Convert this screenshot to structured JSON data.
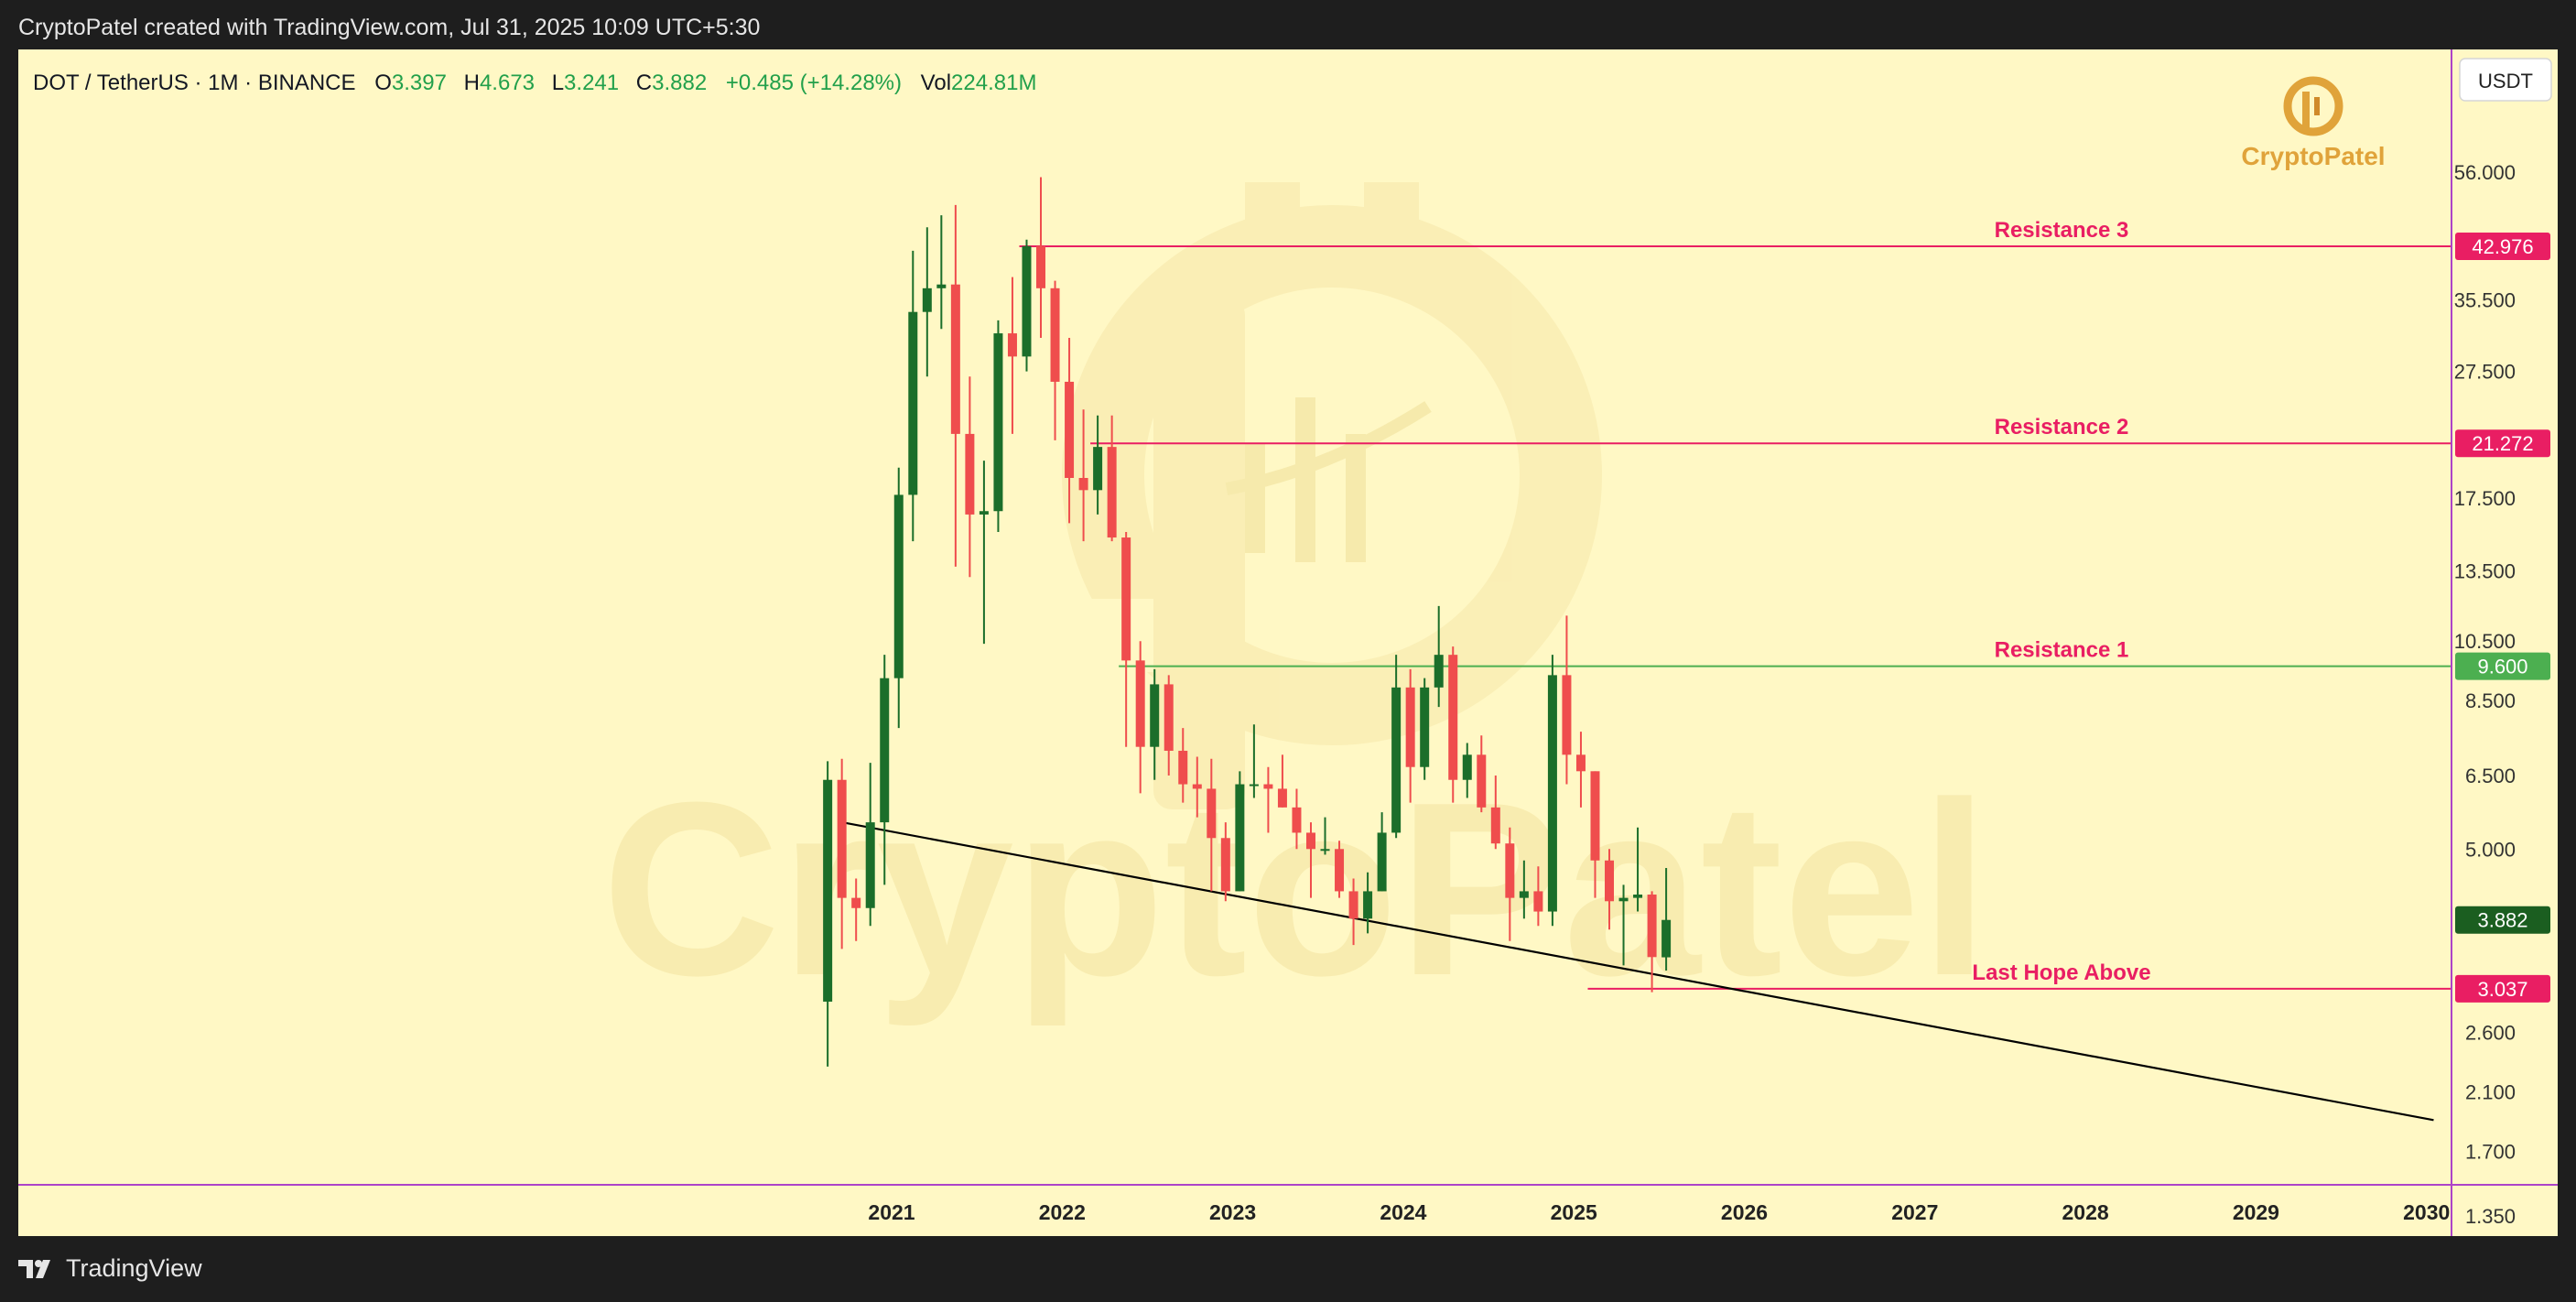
{
  "header": {
    "attribution": "CryptoPatel created with TradingView.com, Jul 31, 2025 10:09 UTC+5:30"
  },
  "legend": {
    "symbol": "DOT / TetherUS · 1M · BINANCE",
    "open_label": "O",
    "open": "3.397",
    "high_label": "H",
    "high": "4.673",
    "low_label": "L",
    "low": "3.241",
    "close_label": "C",
    "close": "3.882",
    "change": "+0.485 (+14.28%)",
    "vol_label": "Vol",
    "vol": "224.81M"
  },
  "currency": "USDT",
  "watermark": {
    "brand": "CryptoPatel"
  },
  "footer": {
    "brand": "TradingView"
  },
  "colors": {
    "up": "#1b6e2a",
    "down": "#ef4d4d",
    "resistance": "#e91e63",
    "support_green": "#4caf50",
    "background": "#fff8c5"
  },
  "chart_data": {
    "type": "candlestick",
    "title": "",
    "yscale": "log",
    "ylim": [
      1.13,
      72
    ],
    "x_ticks": [
      "2021",
      "2022",
      "2023",
      "2024",
      "2025",
      "2026",
      "2027",
      "2028",
      "2029",
      "2030"
    ],
    "y_ticks": [
      "56.000",
      "35.500",
      "27.500",
      "17.500",
      "13.500",
      "10.500",
      "8.500",
      "6.500",
      "5.000",
      "2.600",
      "2.100",
      "1.700",
      "1.350"
    ],
    "y_tick_values": [
      56,
      35.5,
      27.5,
      17.5,
      13.5,
      10.5,
      8.5,
      6.5,
      5.0,
      2.6,
      2.1,
      1.7,
      1.35
    ],
    "levels": [
      {
        "name": "Resistance 3",
        "value": 42.976,
        "tag": "42.976",
        "color": "#e91e63",
        "start": "2021-10"
      },
      {
        "name": "Resistance 2",
        "value": 21.272,
        "tag": "21.272",
        "color": "#e91e63",
        "start": "2022-03"
      },
      {
        "name": "Resistance 1",
        "value": 9.6,
        "tag": "9.600",
        "color": "#4caf50",
        "start": "2022-05"
      },
      {
        "name": "Last Hope Above",
        "value": 3.037,
        "tag": "3.037",
        "color": "#e91e63",
        "start": "2025-02"
      }
    ],
    "price_tag": {
      "value": 3.882,
      "tag": "3.882"
    },
    "trendline": {
      "start": {
        "date": "2020-09",
        "price": 5.5
      },
      "end": {
        "date": "2030-01",
        "price": 1.9
      }
    },
    "candles": [
      {
        "t": "2020-08",
        "o": 2.9,
        "h": 6.84,
        "l": 2.3,
        "c": 6.4
      },
      {
        "t": "2020-09",
        "o": 6.4,
        "h": 6.9,
        "l": 3.5,
        "c": 4.2
      },
      {
        "t": "2020-10",
        "o": 4.2,
        "h": 4.5,
        "l": 3.6,
        "c": 4.05
      },
      {
        "t": "2020-11",
        "o": 4.05,
        "h": 6.8,
        "l": 3.8,
        "c": 5.5
      },
      {
        "t": "2020-12",
        "o": 5.5,
        "h": 10.0,
        "l": 4.4,
        "c": 9.2
      },
      {
        "t": "2021-01",
        "o": 9.2,
        "h": 19.5,
        "l": 7.7,
        "c": 17.7
      },
      {
        "t": "2021-02",
        "o": 17.7,
        "h": 42.3,
        "l": 15.0,
        "c": 34.0
      },
      {
        "t": "2021-03",
        "o": 34.0,
        "h": 46.0,
        "l": 27.0,
        "c": 37.0
      },
      {
        "t": "2021-04",
        "o": 37.0,
        "h": 48.0,
        "l": 32.0,
        "c": 37.5
      },
      {
        "t": "2021-05",
        "o": 37.5,
        "h": 49.8,
        "l": 13.7,
        "c": 22.0
      },
      {
        "t": "2021-06",
        "o": 22.0,
        "h": 27.0,
        "l": 13.2,
        "c": 16.5
      },
      {
        "t": "2021-07",
        "o": 16.5,
        "h": 20.0,
        "l": 10.4,
        "c": 16.7
      },
      {
        "t": "2021-08",
        "o": 16.7,
        "h": 33.0,
        "l": 15.5,
        "c": 31.5
      },
      {
        "t": "2021-09",
        "o": 31.5,
        "h": 38.5,
        "l": 22.0,
        "c": 29.0
      },
      {
        "t": "2021-10",
        "o": 29.0,
        "h": 44.0,
        "l": 27.5,
        "c": 43.0
      },
      {
        "t": "2021-11",
        "o": 43.0,
        "h": 55.0,
        "l": 31.0,
        "c": 37.0
      },
      {
        "t": "2021-12",
        "o": 37.0,
        "h": 38.0,
        "l": 21.5,
        "c": 26.5
      },
      {
        "t": "2022-01",
        "o": 26.5,
        "h": 31.0,
        "l": 16.0,
        "c": 18.8
      },
      {
        "t": "2022-02",
        "o": 18.8,
        "h": 24.0,
        "l": 15.0,
        "c": 18.0
      },
      {
        "t": "2022-03",
        "o": 18.0,
        "h": 23.5,
        "l": 16.5,
        "c": 21.0
      },
      {
        "t": "2022-04",
        "o": 21.0,
        "h": 23.5,
        "l": 15.0,
        "c": 15.2
      },
      {
        "t": "2022-05",
        "o": 15.2,
        "h": 15.5,
        "l": 7.2,
        "c": 9.8
      },
      {
        "t": "2022-06",
        "o": 9.8,
        "h": 10.5,
        "l": 6.1,
        "c": 7.2
      },
      {
        "t": "2022-07",
        "o": 7.2,
        "h": 9.5,
        "l": 6.4,
        "c": 9.0
      },
      {
        "t": "2022-08",
        "o": 9.0,
        "h": 9.3,
        "l": 6.5,
        "c": 7.1
      },
      {
        "t": "2022-09",
        "o": 7.1,
        "h": 7.7,
        "l": 5.9,
        "c": 6.3
      },
      {
        "t": "2022-10",
        "o": 6.3,
        "h": 6.95,
        "l": 5.6,
        "c": 6.2
      },
      {
        "t": "2022-11",
        "o": 6.2,
        "h": 6.9,
        "l": 4.3,
        "c": 5.2
      },
      {
        "t": "2022-12",
        "o": 5.2,
        "h": 5.5,
        "l": 4.15,
        "c": 4.3
      },
      {
        "t": "2023-01",
        "o": 4.3,
        "h": 6.6,
        "l": 4.3,
        "c": 6.3
      },
      {
        "t": "2023-02",
        "o": 6.3,
        "h": 7.8,
        "l": 6.0,
        "c": 6.3
      },
      {
        "t": "2023-03",
        "o": 6.3,
        "h": 6.7,
        "l": 5.3,
        "c": 6.2
      },
      {
        "t": "2023-04",
        "o": 6.2,
        "h": 7.0,
        "l": 5.8,
        "c": 5.8
      },
      {
        "t": "2023-05",
        "o": 5.8,
        "h": 6.2,
        "l": 5.0,
        "c": 5.3
      },
      {
        "t": "2023-06",
        "o": 5.3,
        "h": 5.5,
        "l": 4.2,
        "c": 5.0
      },
      {
        "t": "2023-07",
        "o": 5.0,
        "h": 5.6,
        "l": 4.9,
        "c": 5.0
      },
      {
        "t": "2023-08",
        "o": 5.0,
        "h": 5.15,
        "l": 4.2,
        "c": 4.3
      },
      {
        "t": "2023-09",
        "o": 4.3,
        "h": 4.5,
        "l": 3.55,
        "c": 3.9
      },
      {
        "t": "2023-10",
        "o": 3.9,
        "h": 4.6,
        "l": 3.7,
        "c": 4.3
      },
      {
        "t": "2023-11",
        "o": 4.3,
        "h": 5.7,
        "l": 4.3,
        "c": 5.3
      },
      {
        "t": "2023-12",
        "o": 5.3,
        "h": 10.0,
        "l": 5.2,
        "c": 8.9
      },
      {
        "t": "2024-01",
        "o": 8.9,
        "h": 9.5,
        "l": 5.9,
        "c": 6.7
      },
      {
        "t": "2024-02",
        "o": 6.7,
        "h": 9.2,
        "l": 6.4,
        "c": 8.9
      },
      {
        "t": "2024-03",
        "o": 8.9,
        "h": 11.9,
        "l": 8.3,
        "c": 10.0
      },
      {
        "t": "2024-04",
        "o": 10.0,
        "h": 10.3,
        "l": 5.9,
        "c": 6.4
      },
      {
        "t": "2024-05",
        "o": 6.4,
        "h": 7.3,
        "l": 6.0,
        "c": 7.0
      },
      {
        "t": "2024-06",
        "o": 7.0,
        "h": 7.5,
        "l": 5.7,
        "c": 5.8
      },
      {
        "t": "2024-07",
        "o": 5.8,
        "h": 6.5,
        "l": 5.0,
        "c": 5.1
      },
      {
        "t": "2024-08",
        "o": 5.1,
        "h": 5.4,
        "l": 3.6,
        "c": 4.2
      },
      {
        "t": "2024-09",
        "o": 4.2,
        "h": 4.8,
        "l": 3.9,
        "c": 4.3
      },
      {
        "t": "2024-10",
        "o": 4.3,
        "h": 4.7,
        "l": 3.8,
        "c": 4.0
      },
      {
        "t": "2024-11",
        "o": 4.0,
        "h": 10.0,
        "l": 3.8,
        "c": 9.3
      },
      {
        "t": "2024-12",
        "o": 9.3,
        "h": 11.5,
        "l": 6.3,
        "c": 7.0
      },
      {
        "t": "2025-01",
        "o": 7.0,
        "h": 7.6,
        "l": 5.8,
        "c": 6.6
      },
      {
        "t": "2025-02",
        "o": 6.6,
        "h": 6.6,
        "l": 4.2,
        "c": 4.8
      },
      {
        "t": "2025-03",
        "o": 4.8,
        "h": 5.0,
        "l": 3.75,
        "c": 4.15
      },
      {
        "t": "2025-04",
        "o": 4.15,
        "h": 4.4,
        "l": 3.3,
        "c": 4.2
      },
      {
        "t": "2025-05",
        "o": 4.2,
        "h": 5.4,
        "l": 4.0,
        "c": 4.25
      },
      {
        "t": "2025-06",
        "o": 4.25,
        "h": 4.3,
        "l": 3.0,
        "c": 3.4
      },
      {
        "t": "2025-07",
        "o": 3.397,
        "h": 4.673,
        "l": 3.241,
        "c": 3.882
      }
    ]
  }
}
